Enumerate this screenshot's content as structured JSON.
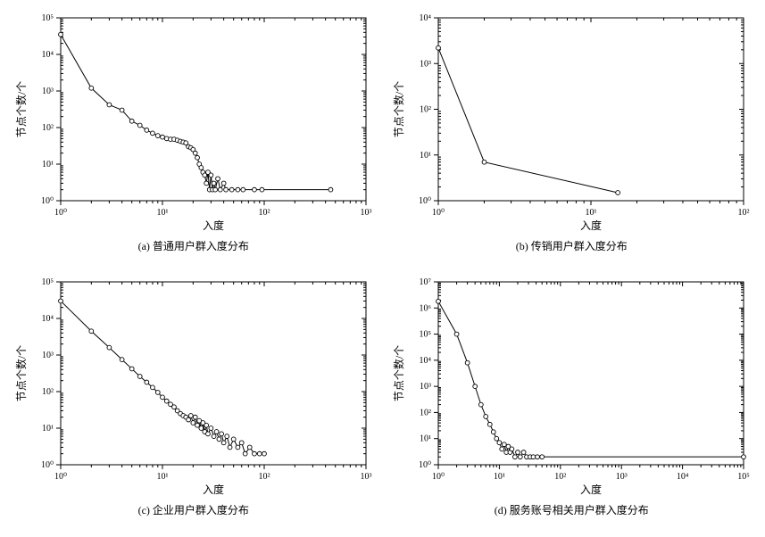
{
  "global": {
    "background_color": "#ffffff",
    "axis_color": "#000000",
    "marker_color": "#ffffff",
    "marker_stroke": "#000000",
    "line_color": "#000000",
    "line_width": 1,
    "marker_radius": 2.4,
    "label_fontsize": 12,
    "tick_fontsize": 10
  },
  "panels": [
    {
      "id": "a",
      "caption": "(a) 普通用户群入度分布",
      "xlabel": "入度",
      "ylabel": "节点个数/个",
      "x_log_range": [
        0,
        3
      ],
      "y_log_range": [
        0,
        5
      ],
      "type": "loglog-line-markers",
      "series": [
        {
          "x": 1,
          "y": 35000
        },
        {
          "x": 2,
          "y": 1200
        },
        {
          "x": 3,
          "y": 420
        },
        {
          "x": 4,
          "y": 300
        },
        {
          "x": 5,
          "y": 150
        },
        {
          "x": 6,
          "y": 115
        },
        {
          "x": 7,
          "y": 85
        },
        {
          "x": 8,
          "y": 70
        },
        {
          "x": 9,
          "y": 60
        },
        {
          "x": 10,
          "y": 55
        },
        {
          "x": 11,
          "y": 50
        },
        {
          "x": 12,
          "y": 48
        },
        {
          "x": 13,
          "y": 48
        },
        {
          "x": 14,
          "y": 45
        },
        {
          "x": 15,
          "y": 42
        },
        {
          "x": 16,
          "y": 40
        },
        {
          "x": 17,
          "y": 38
        },
        {
          "x": 18,
          "y": 30
        },
        {
          "x": 19,
          "y": 28
        },
        {
          "x": 20,
          "y": 25
        },
        {
          "x": 21,
          "y": 20
        },
        {
          "x": 22,
          "y": 15
        },
        {
          "x": 23,
          "y": 10
        },
        {
          "x": 24,
          "y": 8
        },
        {
          "x": 25,
          "y": 6
        },
        {
          "x": 26,
          "y": 5
        },
        {
          "x": 27,
          "y": 3
        },
        {
          "x": 28,
          "y": 6
        },
        {
          "x": 29,
          "y": 2
        },
        {
          "x": 30,
          "y": 5
        },
        {
          "x": 31,
          "y": 2
        },
        {
          "x": 32,
          "y": 3
        },
        {
          "x": 33,
          "y": 2
        },
        {
          "x": 35,
          "y": 4
        },
        {
          "x": 37,
          "y": 2
        },
        {
          "x": 40,
          "y": 3
        },
        {
          "x": 42,
          "y": 2
        },
        {
          "x": 48,
          "y": 2
        },
        {
          "x": 55,
          "y": 2
        },
        {
          "x": 62,
          "y": 2
        },
        {
          "x": 80,
          "y": 2
        },
        {
          "x": 95,
          "y": 2
        },
        {
          "x": 450,
          "y": 2
        }
      ]
    },
    {
      "id": "b",
      "caption": "(b) 传销用户群入度分布",
      "xlabel": "入度",
      "ylabel": "节点个数/个",
      "x_log_range": [
        0,
        2
      ],
      "y_log_range": [
        0,
        4
      ],
      "type": "loglog-line-markers",
      "series": [
        {
          "x": 1,
          "y": 2200
        },
        {
          "x": 2,
          "y": 7
        },
        {
          "x": 15,
          "y": 1.5
        }
      ]
    },
    {
      "id": "c",
      "caption": "(c) 企业用户群入度分布",
      "xlabel": "入度",
      "ylabel": "节点个数/个",
      "x_log_range": [
        0,
        3
      ],
      "y_log_range": [
        0,
        5
      ],
      "type": "loglog-line-markers",
      "series": [
        {
          "x": 1,
          "y": 30000
        },
        {
          "x": 2,
          "y": 4500
        },
        {
          "x": 3,
          "y": 1600
        },
        {
          "x": 4,
          "y": 750
        },
        {
          "x": 5,
          "y": 420
        },
        {
          "x": 6,
          "y": 260
        },
        {
          "x": 7,
          "y": 180
        },
        {
          "x": 8,
          "y": 130
        },
        {
          "x": 9,
          "y": 95
        },
        {
          "x": 10,
          "y": 70
        },
        {
          "x": 11,
          "y": 55
        },
        {
          "x": 12,
          "y": 45
        },
        {
          "x": 13,
          "y": 38
        },
        {
          "x": 14,
          "y": 30
        },
        {
          "x": 15,
          "y": 25
        },
        {
          "x": 16,
          "y": 22
        },
        {
          "x": 17,
          "y": 20
        },
        {
          "x": 18,
          "y": 17
        },
        {
          "x": 19,
          "y": 22
        },
        {
          "x": 20,
          "y": 14
        },
        {
          "x": 21,
          "y": 20
        },
        {
          "x": 22,
          "y": 12
        },
        {
          "x": 23,
          "y": 16
        },
        {
          "x": 24,
          "y": 10
        },
        {
          "x": 25,
          "y": 14
        },
        {
          "x": 26,
          "y": 8
        },
        {
          "x": 27,
          "y": 12
        },
        {
          "x": 28,
          "y": 7
        },
        {
          "x": 30,
          "y": 10
        },
        {
          "x": 32,
          "y": 6
        },
        {
          "x": 34,
          "y": 8
        },
        {
          "x": 36,
          "y": 5
        },
        {
          "x": 38,
          "y": 7
        },
        {
          "x": 40,
          "y": 4
        },
        {
          "x": 43,
          "y": 6
        },
        {
          "x": 46,
          "y": 3
        },
        {
          "x": 50,
          "y": 5
        },
        {
          "x": 55,
          "y": 3
        },
        {
          "x": 60,
          "y": 4
        },
        {
          "x": 65,
          "y": 2
        },
        {
          "x": 72,
          "y": 3
        },
        {
          "x": 80,
          "y": 2
        },
        {
          "x": 90,
          "y": 2
        },
        {
          "x": 100,
          "y": 2
        }
      ]
    },
    {
      "id": "d",
      "caption": "(d) 服务账号相关用户群入度分布",
      "xlabel": "入度",
      "ylabel": "节点个数/个",
      "x_log_range": [
        0,
        5
      ],
      "y_log_range": [
        0,
        7
      ],
      "type": "loglog-line-markers",
      "series": [
        {
          "x": 1,
          "y": 1800000
        },
        {
          "x": 2,
          "y": 100000
        },
        {
          "x": 3,
          "y": 8000
        },
        {
          "x": 4,
          "y": 1000
        },
        {
          "x": 5,
          "y": 200
        },
        {
          "x": 6,
          "y": 70
        },
        {
          "x": 7,
          "y": 35
        },
        {
          "x": 8,
          "y": 18
        },
        {
          "x": 9,
          "y": 10
        },
        {
          "x": 10,
          "y": 7
        },
        {
          "x": 11,
          "y": 4
        },
        {
          "x": 12,
          "y": 6
        },
        {
          "x": 13,
          "y": 3
        },
        {
          "x": 14,
          "y": 5
        },
        {
          "x": 15,
          "y": 3
        },
        {
          "x": 16,
          "y": 4
        },
        {
          "x": 18,
          "y": 2
        },
        {
          "x": 20,
          "y": 3
        },
        {
          "x": 22,
          "y": 2
        },
        {
          "x": 25,
          "y": 3
        },
        {
          "x": 28,
          "y": 2
        },
        {
          "x": 32,
          "y": 2
        },
        {
          "x": 36,
          "y": 2
        },
        {
          "x": 42,
          "y": 2
        },
        {
          "x": 50,
          "y": 2
        },
        {
          "x": 100000,
          "y": 2
        }
      ]
    }
  ]
}
